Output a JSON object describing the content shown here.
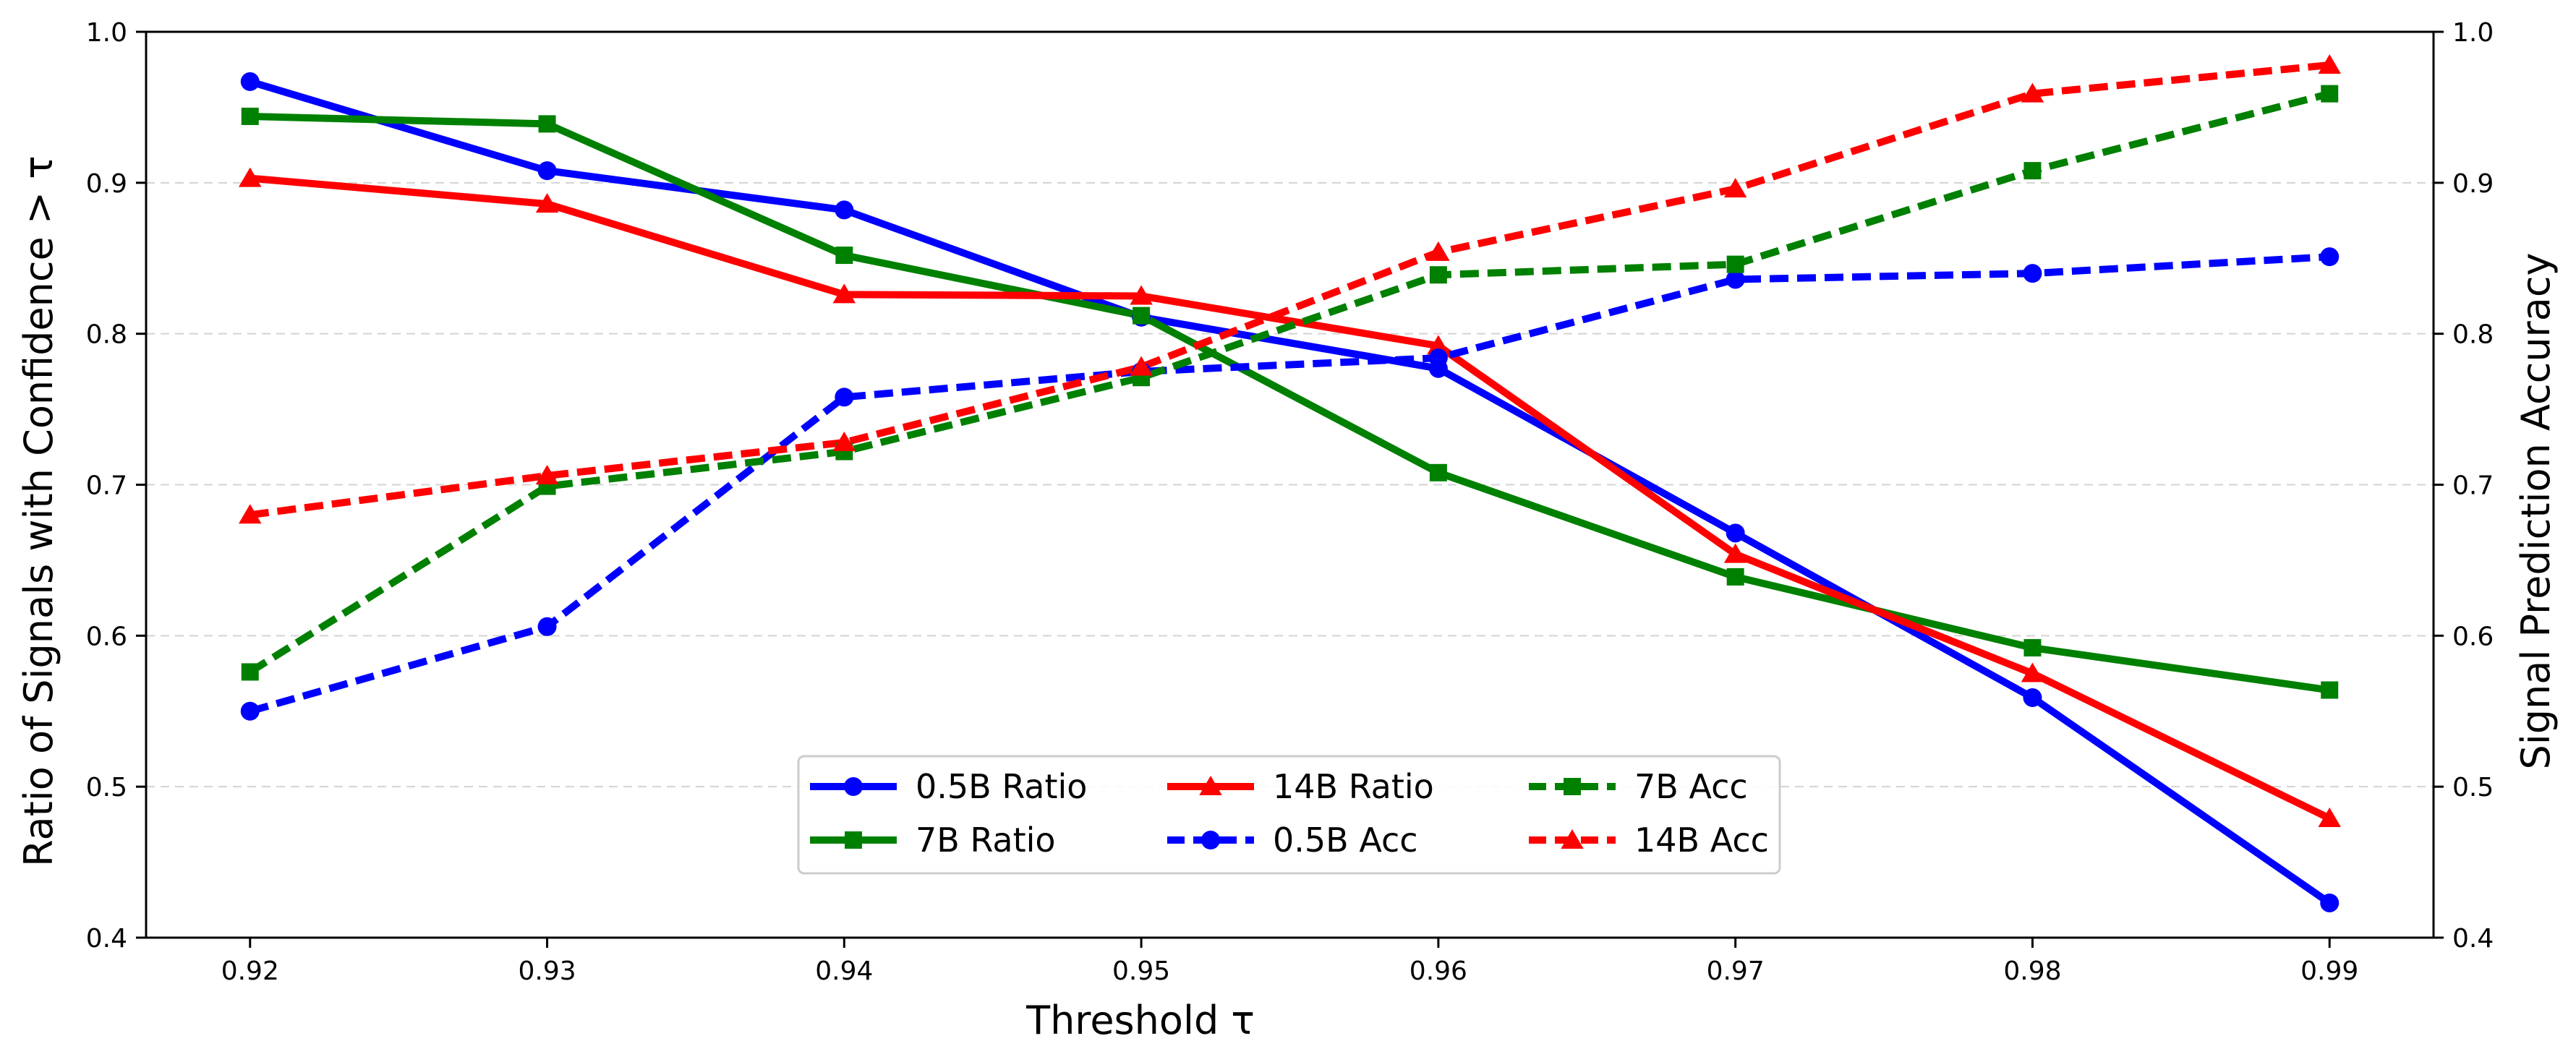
{
  "chart_data": {
    "type": "line",
    "x": [
      0.92,
      0.93,
      0.94,
      0.95,
      0.96,
      0.97,
      0.98,
      0.99
    ],
    "x_tick_labels": [
      "0.92",
      "0.93",
      "0.94",
      "0.95",
      "0.96",
      "0.97",
      "0.98",
      "0.99"
    ],
    "y_tick_labels": [
      "0.4",
      "0.5",
      "0.6",
      "0.7",
      "0.8",
      "0.9",
      "1.0"
    ],
    "y_ticks": [
      0.4,
      0.5,
      0.6,
      0.7,
      0.8,
      0.9,
      1.0
    ],
    "xlim": [
      0.9165,
      0.9935
    ],
    "ylim": [
      0.4,
      1.0
    ],
    "y2lim": [
      0.4,
      1.0
    ],
    "xlabel": "Threshold τ",
    "ylabel": "Ratio of Signals with Confidence > τ",
    "y2label": "Signal Prediction Accuracy",
    "grid": "horizontal dashed",
    "legend_position": "lower-center",
    "series": [
      {
        "name": "0.5B Ratio",
        "color": "#0000ff",
        "linestyle": "solid",
        "marker": "circle",
        "axis": "left",
        "values": [
          0.967,
          0.908,
          0.882,
          0.811,
          0.777,
          0.668,
          0.559,
          0.423
        ]
      },
      {
        "name": "7B Ratio",
        "color": "#008000",
        "linestyle": "solid",
        "marker": "square",
        "axis": "left",
        "values": [
          0.944,
          0.939,
          0.852,
          0.812,
          0.708,
          0.639,
          0.592,
          0.564
        ]
      },
      {
        "name": "14B Ratio",
        "color": "#ff0000",
        "linestyle": "solid",
        "marker": "triangle",
        "axis": "left",
        "values": [
          0.903,
          0.886,
          0.826,
          0.825,
          0.792,
          0.654,
          0.575,
          0.479
        ]
      },
      {
        "name": "0.5B Acc",
        "color": "#0000ff",
        "linestyle": "dashed",
        "marker": "circle",
        "axis": "right",
        "values": [
          0.55,
          0.606,
          0.758,
          0.775,
          0.784,
          0.836,
          0.84,
          0.851
        ]
      },
      {
        "name": "7B Acc",
        "color": "#008000",
        "linestyle": "dashed",
        "marker": "square",
        "axis": "right",
        "values": [
          0.576,
          0.699,
          0.722,
          0.771,
          0.839,
          0.846,
          0.908,
          0.959
        ]
      },
      {
        "name": "14B Acc",
        "color": "#ff0000",
        "linestyle": "dashed",
        "marker": "triangle",
        "axis": "right",
        "values": [
          0.68,
          0.706,
          0.728,
          0.778,
          0.854,
          0.896,
          0.959,
          0.978
        ]
      }
    ],
    "legend_order": [
      0,
      2,
      4,
      1,
      3,
      5
    ]
  }
}
